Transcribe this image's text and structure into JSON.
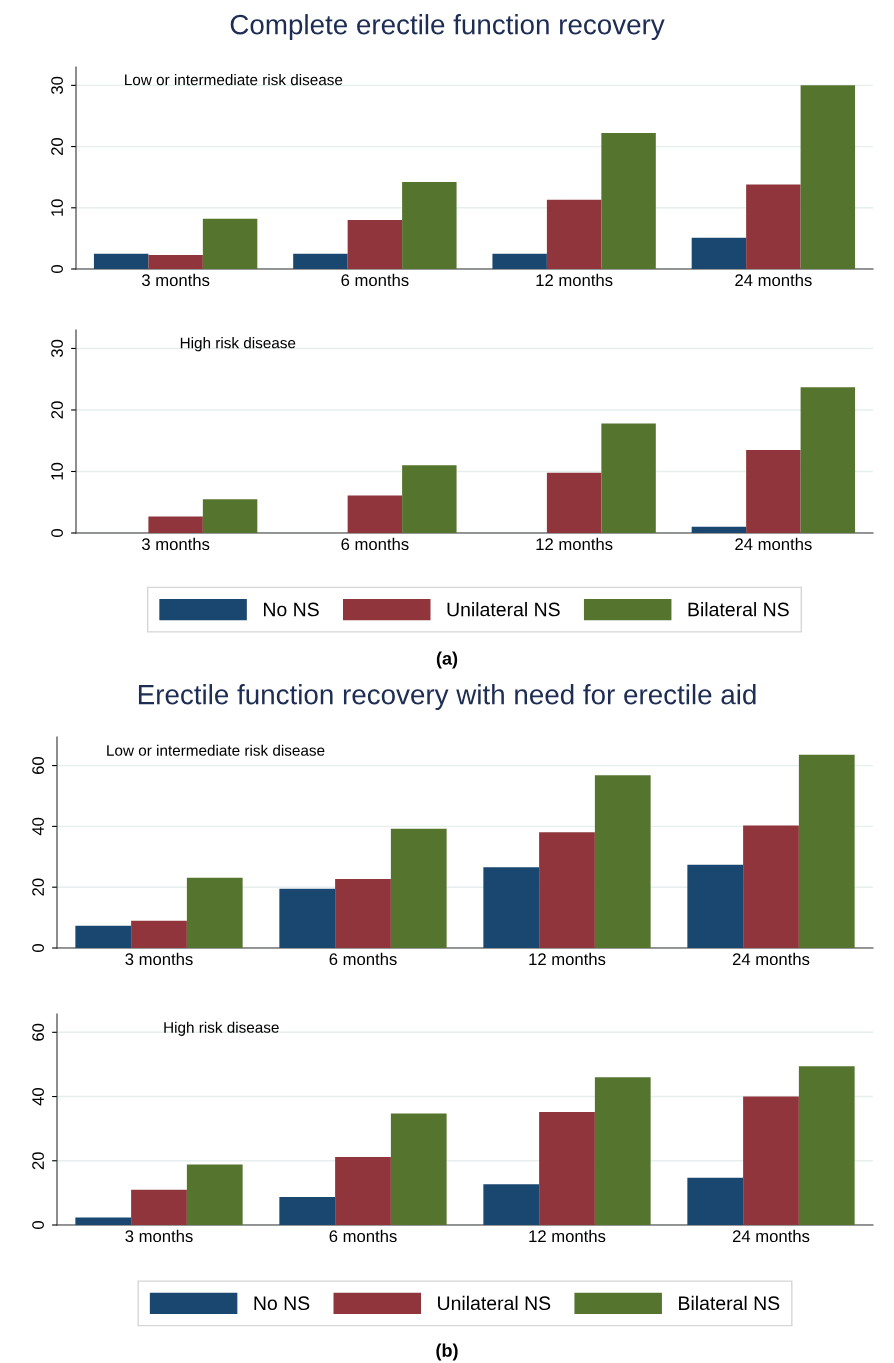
{
  "chart_data": [
    {
      "type": "bar",
      "title": "Complete erectile function recovery",
      "categories": [
        "3 months",
        "6 months",
        "12 months",
        "24 months"
      ],
      "series": [
        {
          "color": "#1a476f",
          "values": [
            2.5,
            2.5,
            2.5,
            5.1
          ]
        },
        {
          "color": "#90353b",
          "values": [
            2.3,
            8.0,
            11.3,
            13.8
          ]
        },
        {
          "color": "#55752f",
          "values": [
            8.2,
            14.2,
            22.2,
            30.0
          ]
        }
      ],
      "ylim": [
        0,
        33
      ],
      "yticks": [
        0,
        10,
        20,
        30
      ],
      "grid": "y",
      "annotations": [
        "Low or intermediate risk disease"
      ]
    },
    {
      "type": "bar",
      "categories": [
        "3 months",
        "6 months",
        "12 months",
        "24 months"
      ],
      "series": [
        {
          "name": "No NS",
          "color": "#1a476f",
          "values": [
            0,
            0,
            0,
            1.0
          ]
        },
        {
          "name": "Unilateral NS",
          "color": "#90353b",
          "values": [
            2.7,
            6.1,
            9.8,
            13.5
          ]
        },
        {
          "name": "Bilateral NS",
          "color": "#55752f",
          "values": [
            5.5,
            11.0,
            17.8,
            23.7
          ]
        }
      ],
      "ylim": [
        0,
        33
      ],
      "yticks": [
        0,
        10,
        20,
        30
      ],
      "grid": "y",
      "legend": "bottom",
      "annotations": [
        "High risk disease",
        "(a)"
      ]
    },
    {
      "type": "bar",
      "title": "Erectile function recovery with need for erectile aid",
      "categories": [
        "3 months",
        "6 months",
        "12 months",
        "24 months"
      ],
      "series": [
        {
          "color": "#1a476f",
          "values": [
            7.3,
            19.5,
            26.6,
            27.4
          ]
        },
        {
          "color": "#90353b",
          "values": [
            9.0,
            22.7,
            38.1,
            40.3
          ]
        },
        {
          "color": "#55752f",
          "values": [
            23.1,
            39.2,
            56.8,
            63.6
          ]
        }
      ],
      "ylim": [
        0,
        69.4
      ],
      "yticks": [
        0,
        20,
        40,
        60
      ],
      "grid": "y",
      "annotations": [
        "Low or intermediate risk disease"
      ]
    },
    {
      "type": "bar",
      "categories": [
        "3 months",
        "6 months",
        "12 months",
        "24 months"
      ],
      "series": [
        {
          "name": "No NS",
          "color": "#1a476f",
          "values": [
            2.3,
            8.7,
            12.7,
            14.7
          ]
        },
        {
          "name": "Unilateral NS",
          "color": "#90353b",
          "values": [
            11.0,
            21.2,
            35.2,
            40.0
          ]
        },
        {
          "name": "Bilateral NS",
          "color": "#55752f",
          "values": [
            18.8,
            34.7,
            46.0,
            49.4
          ]
        }
      ],
      "ylim": [
        0,
        65.7
      ],
      "yticks": [
        0,
        20,
        40,
        60
      ],
      "grid": "y",
      "legend": "bottom",
      "annotations": [
        "High risk disease",
        "(b)"
      ]
    }
  ]
}
